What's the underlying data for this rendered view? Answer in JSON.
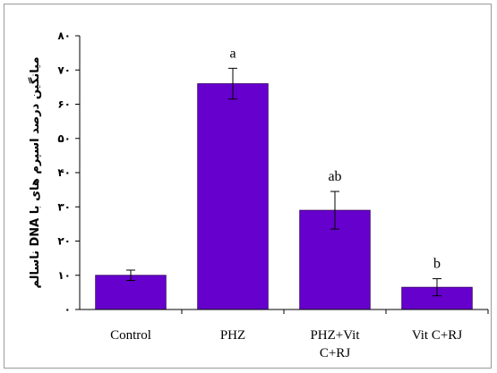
{
  "chart_data": {
    "type": "bar",
    "title": "",
    "xlabel": "",
    "ylabel": "میانگین درصد اسپرم های با DNA ناسالم",
    "categories": [
      [
        "Control"
      ],
      [
        "PHZ"
      ],
      [
        "PHZ+Vit",
        "C+RJ"
      ],
      [
        "Vit C+RJ"
      ]
    ],
    "values": [
      10,
      66,
      29,
      6.5
    ],
    "errors": [
      1.5,
      4.5,
      5.5,
      2.5
    ],
    "bar_labels": [
      "",
      "a",
      "ab",
      "b"
    ],
    "ylim": [
      0,
      80
    ],
    "yticks": [
      0,
      10,
      20,
      30,
      40,
      50,
      60,
      70,
      80
    ],
    "ytick_labels": [
      "٠",
      "١٠",
      "٢٠",
      "٣٠",
      "۴٠",
      "۵٠",
      "۶٠",
      "٧٠",
      "٨٠"
    ],
    "grid": false,
    "legend": "none",
    "colors": {
      "bar": "#6600cc",
      "bar_edge": "#330066",
      "axis": "#000000",
      "frame": "#9a9a9a"
    }
  }
}
